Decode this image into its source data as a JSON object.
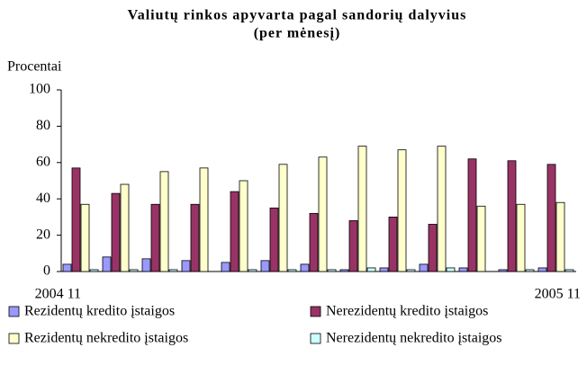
{
  "chart_data": {
    "type": "bar",
    "title": "Valiutų rinkos apyvarta pagal sandorių dalyvius",
    "subtitle": "(per mėnesį)",
    "y_label": "Procentai",
    "categories": [
      "2004 11",
      null,
      null,
      null,
      null,
      null,
      null,
      null,
      null,
      null,
      null,
      null,
      "2005 11"
    ],
    "series": [
      {
        "name": "Rezidentų kredito įstaigos",
        "color": "#9999ff",
        "values": [
          4,
          8,
          7,
          6,
          5,
          6,
          4,
          1,
          2,
          4,
          2,
          1,
          2
        ]
      },
      {
        "name": "Nerezidentų kredito įstaigos",
        "color": "#993366",
        "values": [
          57,
          43,
          37,
          37,
          44,
          35,
          32,
          28,
          30,
          26,
          62,
          61,
          59
        ]
      },
      {
        "name": "Rezidentų nekredito įstaigos",
        "color": "#ffffcc",
        "values": [
          37,
          48,
          55,
          57,
          50,
          59,
          63,
          69,
          67,
          69,
          36,
          37,
          38
        ]
      },
      {
        "name": "Nerezidentų nekredito įstaigos",
        "color": "#ccffff",
        "values": [
          1,
          1,
          1,
          0,
          1,
          1,
          1,
          2,
          1,
          2,
          0,
          1,
          1
        ]
      }
    ],
    "ylim": [
      0,
      100
    ],
    "yticks": [
      0,
      20,
      40,
      60,
      80,
      100
    ],
    "grid": false
  }
}
